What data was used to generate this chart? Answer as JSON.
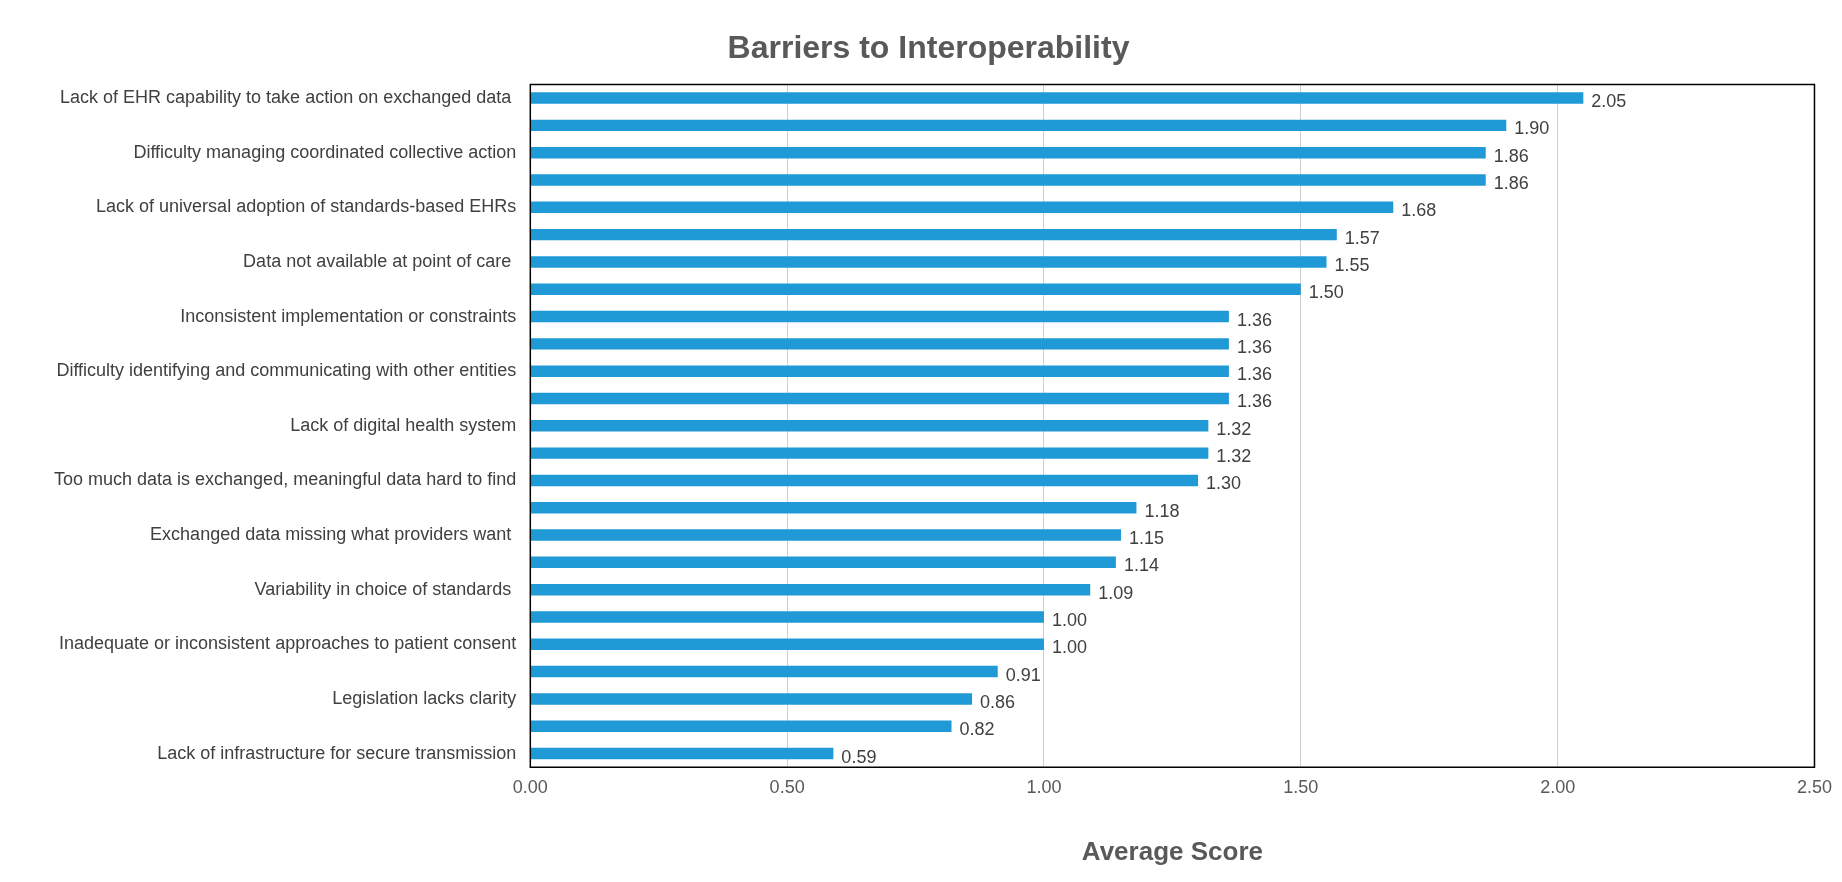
{
  "chart_data": {
    "type": "bar",
    "orientation": "horizontal",
    "title": "Barriers to Interoperability",
    "xlabel": "Average Score",
    "categories": [
      "Lack of EHR capability to take action on exchanged data ",
      null,
      "Difficulty managing coordinated collective action",
      null,
      "Lack of universal adoption of standards-based EHRs",
      null,
      "Data not available at point of care ",
      null,
      "Inconsistent implementation or constraints",
      null,
      "Difficulty identifying and communicating with other entities",
      null,
      "Lack of digital health system",
      null,
      "Too much data is exchanged, meaningful data hard to find",
      null,
      "Exchanged data missing what providers want ",
      null,
      "Variability in choice of standards ",
      null,
      "Inadequate or inconsistent approaches to patient consent",
      null,
      "Legislation lacks clarity",
      null,
      "Lack of infrastructure for secure transmission"
    ],
    "values": [
      2.05,
      1.9,
      1.86,
      1.86,
      1.68,
      1.57,
      1.55,
      1.5,
      1.36,
      1.36,
      1.36,
      1.36,
      1.32,
      1.32,
      1.3,
      1.18,
      1.15,
      1.14,
      1.09,
      1.0,
      1.0,
      0.91,
      0.86,
      0.82,
      0.59
    ],
    "value_labels": [
      "2.05",
      "1.90",
      "1.86",
      "1.86",
      "1.68",
      "1.57",
      "1.55",
      "1.50",
      "1.36",
      "1.36",
      "1.36",
      "1.36",
      "1.32",
      "1.32",
      "1.30",
      "1.18",
      "1.15",
      "1.14",
      "1.09",
      "1.00",
      "1.00",
      "0.91",
      "0.86",
      "0.82",
      "0.59"
    ],
    "color": "#1f9ad6",
    "xlim": [
      0,
      2.5
    ],
    "xticks": [
      {
        "value": 0,
        "label": "0.00"
      },
      {
        "value": 0.5,
        "label": "0.50"
      },
      {
        "value": 1,
        "label": "1.00"
      },
      {
        "value": 1.5,
        "label": "1.50"
      },
      {
        "value": 2,
        "label": "2.00"
      },
      {
        "value": 2.5,
        "label": "2.50"
      }
    ],
    "grid": "x",
    "legend": false
  }
}
